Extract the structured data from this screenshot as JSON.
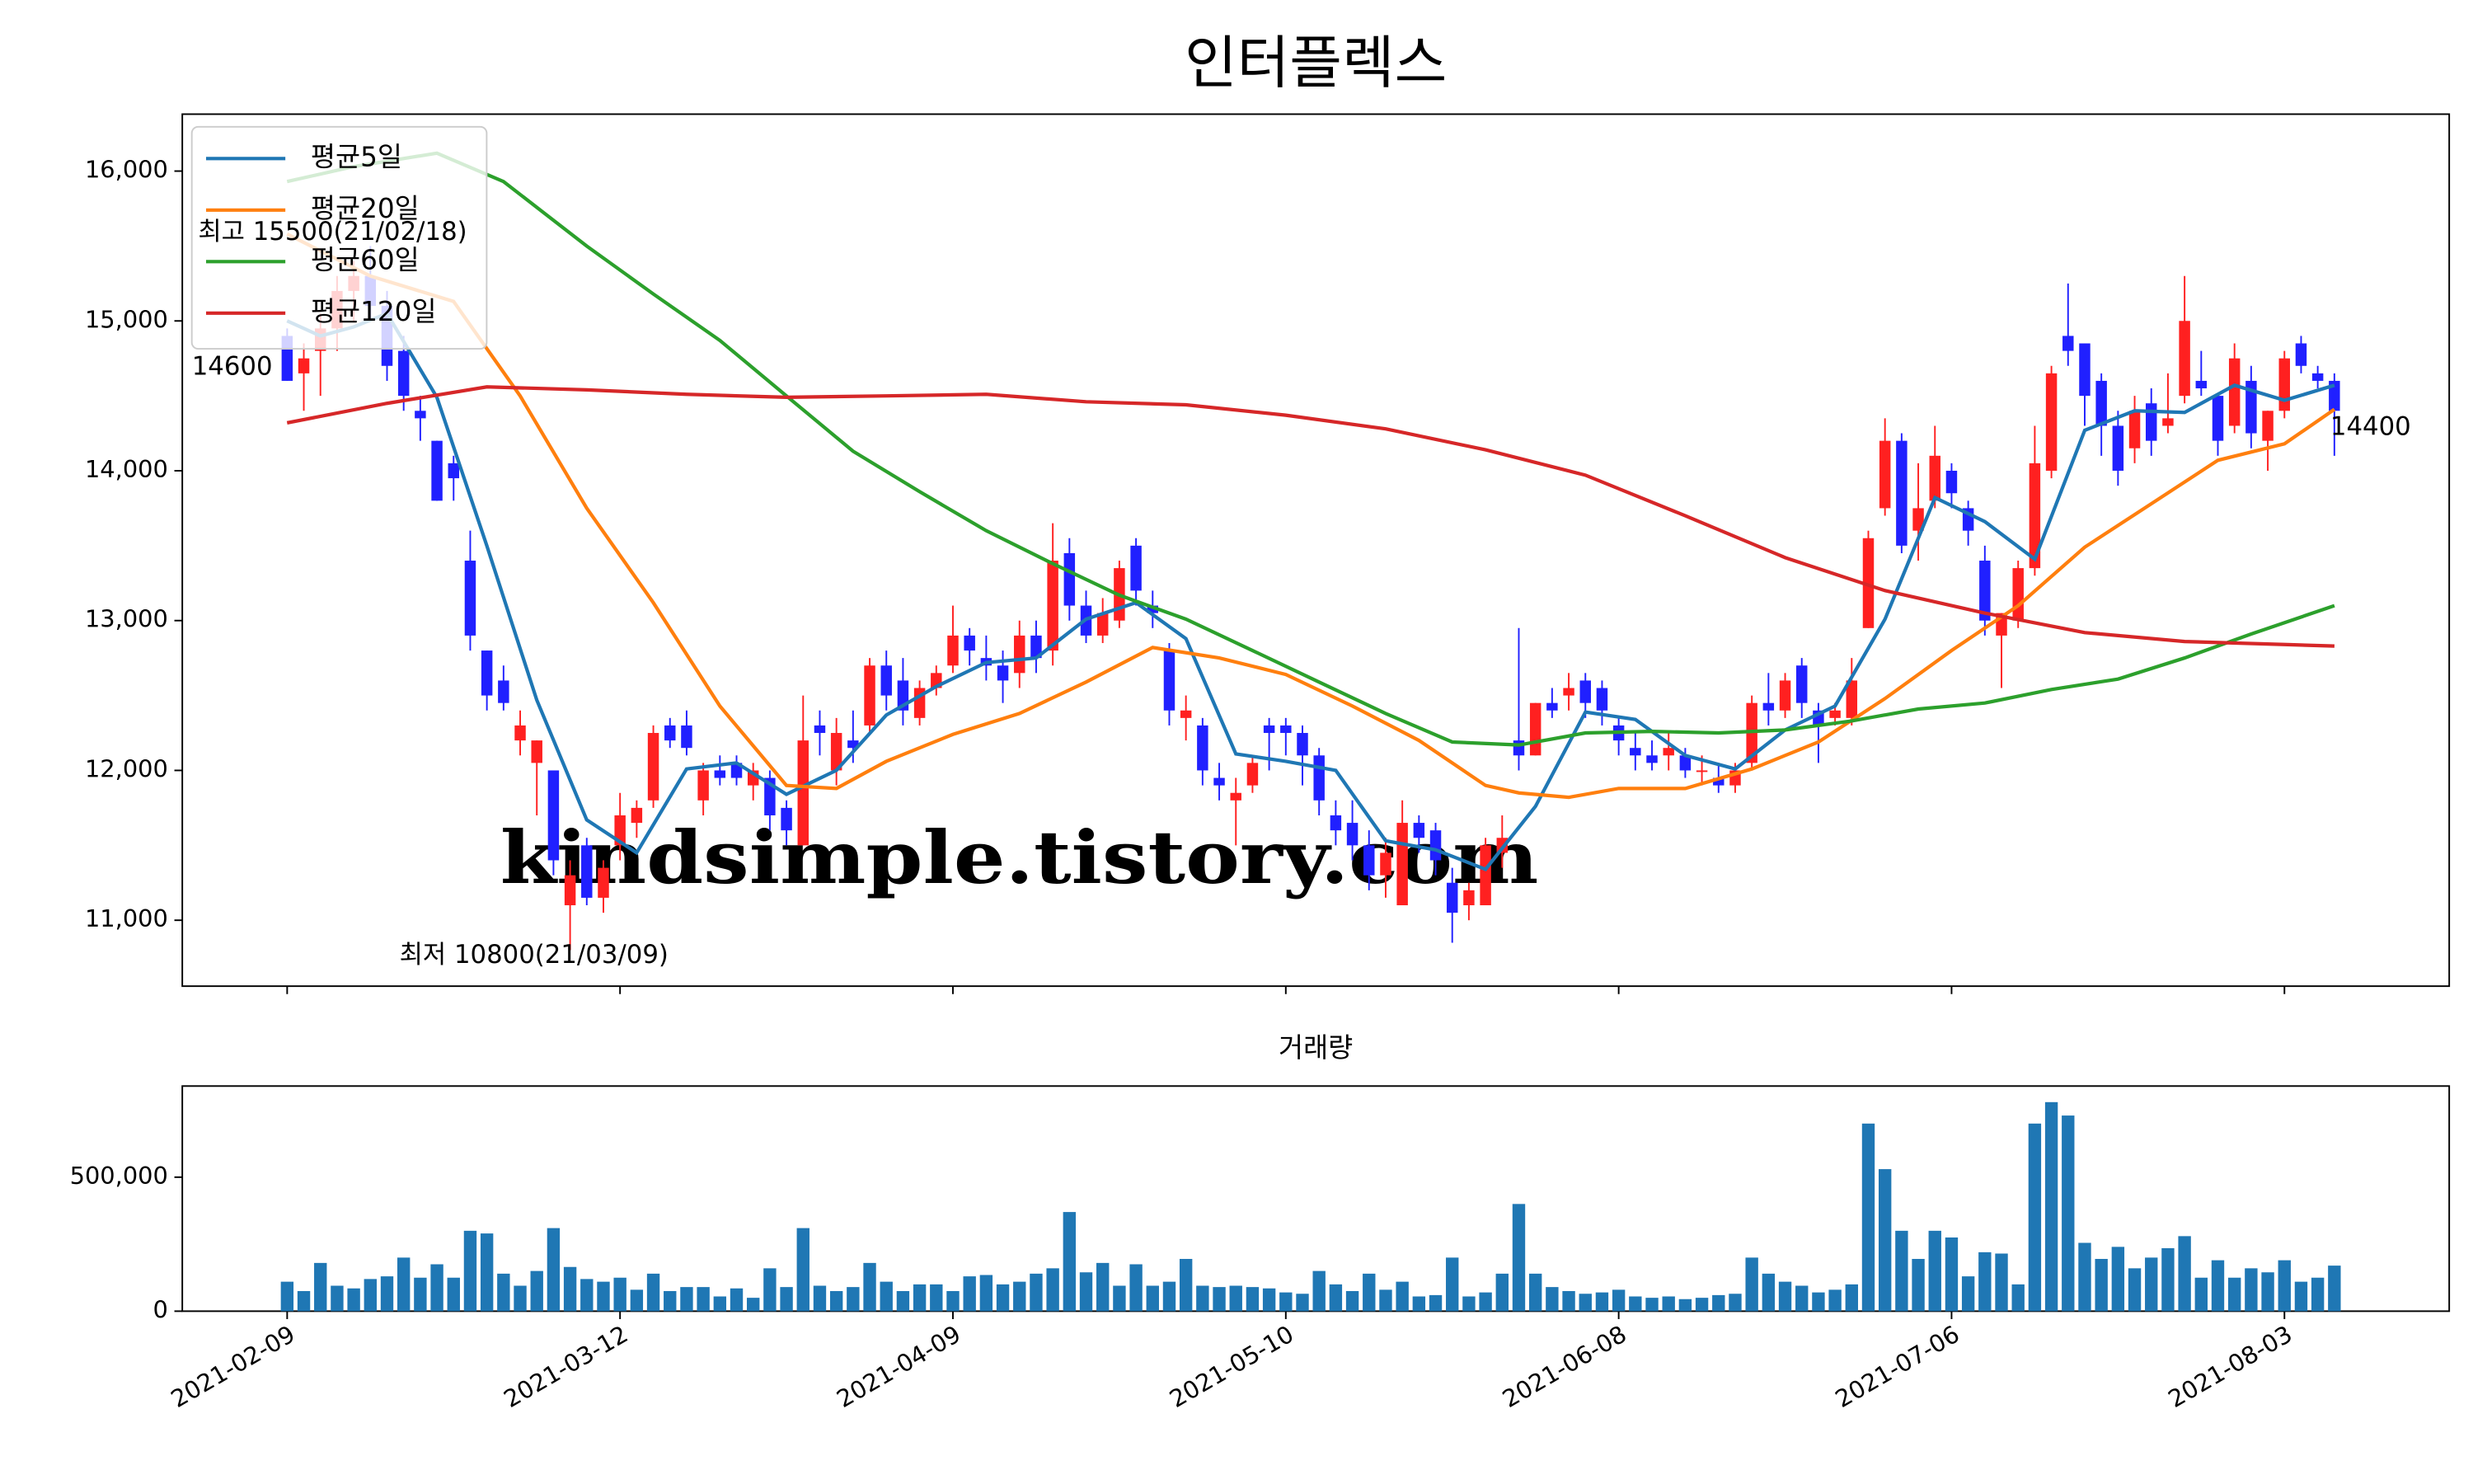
{
  "chart_data": [
    {
      "type": "candlestick",
      "title": "인터플렉스",
      "up_color": "#ff2020",
      "down_color": "#2020ff",
      "watermark": "kindsimple.tistory.com",
      "watermark_color": "#e4a0ee",
      "xlim": [
        -6.3,
        129.9
      ],
      "ylim": [
        10560,
        16380
      ],
      "yticks": [
        {
          "value": 11000,
          "label": "11,000"
        },
        {
          "value": 12000,
          "label": "12,000"
        },
        {
          "value": 13000,
          "label": "13,000"
        },
        {
          "value": 14000,
          "label": "14,000"
        },
        {
          "value": 15000,
          "label": "15,000"
        },
        {
          "value": 16000,
          "label": "16,000"
        }
      ],
      "legend": "upper left",
      "annotations": [
        {
          "text": "최고 15500(21/02/18)",
          "color": "#ff0000"
        },
        {
          "text": "최저 10800(21/03/09)",
          "color": "#0000ff"
        },
        {
          "text": "14600",
          "color": "#000000"
        },
        {
          "text": "14400",
          "color": "#000000"
        }
      ],
      "open": [
        14900,
        14650,
        14800,
        14950,
        15200,
        15300,
        15100,
        14800,
        14400,
        14200,
        14050,
        13400,
        12800,
        12600,
        12200,
        12050,
        12000,
        11100,
        11500,
        11150,
        11500,
        11650,
        11800,
        12300,
        12300,
        11800,
        12000,
        12050,
        11900,
        11950,
        11750,
        11500,
        12300,
        12000,
        12200,
        12300,
        12700,
        12600,
        12350,
        12550,
        12700,
        12900,
        12750,
        12700,
        12650,
        12900,
        12800,
        13450,
        13100,
        12900,
        13000,
        13500,
        13100,
        12800,
        12350,
        12300,
        11950,
        11800,
        11900,
        12300,
        12300,
        12250,
        12100,
        11700,
        11650,
        11500,
        11300,
        11100,
        11650,
        11600,
        11250,
        11100,
        11100,
        11450,
        12200,
        12100,
        12450,
        12500,
        12600,
        12550,
        12300,
        12150,
        12100,
        12100,
        12100,
        12000,
        11950,
        11900,
        12050,
        12450,
        12400,
        12700,
        12400,
        12350,
        12350,
        12950,
        13750,
        14200,
        13600,
        13800,
        14000,
        13750,
        13400,
        12900,
        13000,
        13350,
        14000,
        14900,
        14850,
        14600,
        14300,
        14150,
        14450,
        14300,
        14500,
        14600,
        14500,
        14300,
        14600,
        14200,
        14400,
        14850,
        14650,
        14600
      ],
      "high": [
        14950,
        14850,
        15050,
        15300,
        15400,
        15500,
        15200,
        14900,
        14500,
        14200,
        14100,
        13600,
        12800,
        12700,
        12400,
        12200,
        12000,
        11400,
        11550,
        11400,
        11850,
        11800,
        12300,
        12350,
        12400,
        12050,
        12100,
        12100,
        12050,
        12000,
        11800,
        12500,
        12400,
        12350,
        12400,
        12750,
        12800,
        12750,
        12600,
        12700,
        13100,
        12950,
        12900,
        12800,
        13000,
        13000,
        13650,
        13550,
        13200,
        13150,
        13400,
        13550,
        13200,
        12850,
        12500,
        12350,
        12050,
        11950,
        12100,
        12350,
        12350,
        12300,
        12150,
        11800,
        11800,
        11600,
        11550,
        11800,
        11700,
        11650,
        11350,
        11250,
        11550,
        11700,
        12950,
        12450,
        12550,
        12650,
        12650,
        12600,
        12350,
        12250,
        12200,
        12250,
        12150,
        12100,
        12050,
        12050,
        12500,
        12650,
        12650,
        12750,
        12450,
        12450,
        12750,
        13600,
        14350,
        14250,
        14050,
        14300,
        14050,
        13800,
        13500,
        13050,
        13400,
        14300,
        14700,
        15250,
        14850,
        14650,
        14400,
        14500,
        14550,
        14650,
        15300,
        14800,
        14500,
        14850,
        14700,
        14400,
        14800,
        14900,
        14700,
        14650
      ],
      "low": [
        14600,
        14400,
        14500,
        14800,
        15000,
        15000,
        14600,
        14400,
        14200,
        13800,
        13800,
        12800,
        12400,
        12400,
        12100,
        11700,
        11300,
        10800,
        11100,
        11050,
        11400,
        11550,
        11750,
        12150,
        12100,
        11700,
        11900,
        11900,
        11800,
        11600,
        11500,
        11500,
        12100,
        11900,
        12050,
        12250,
        12400,
        12300,
        12300,
        12500,
        12650,
        12700,
        12600,
        12450,
        12550,
        12650,
        12700,
        13000,
        12850,
        12850,
        12950,
        13100,
        12950,
        12300,
        12200,
        11900,
        11800,
        11500,
        11850,
        12000,
        12100,
        11900,
        11700,
        11500,
        11400,
        11200,
        11150,
        11100,
        11450,
        11300,
        10850,
        11000,
        11100,
        11350,
        12000,
        12100,
        12350,
        12400,
        12350,
        12300,
        12100,
        12000,
        12000,
        12000,
        11950,
        11900,
        11850,
        11850,
        12000,
        12300,
        12350,
        12350,
        12050,
        12300,
        12300,
        12950,
        13700,
        13450,
        13400,
        13750,
        13750,
        13500,
        12900,
        12550,
        12950,
        13300,
        13950,
        14700,
        14300,
        14100,
        13900,
        14050,
        14100,
        14250,
        14450,
        14500,
        14100,
        14250,
        14150,
        14000,
        14350,
        14650,
        14550,
        14100
      ],
      "close": [
        14600,
        14750,
        14950,
        15200,
        15300,
        15100,
        14700,
        14500,
        14350,
        13800,
        13950,
        12900,
        12500,
        12450,
        12300,
        12200,
        11400,
        11300,
        11150,
        11350,
        11700,
        11750,
        12250,
        12200,
        12150,
        12000,
        11950,
        11950,
        12000,
        11700,
        11600,
        12200,
        12250,
        12250,
        12150,
        12700,
        12500,
        12400,
        12550,
        12650,
        12900,
        12800,
        12700,
        12600,
        12900,
        12750,
        13400,
        13100,
        12900,
        13050,
        13350,
        13200,
        13050,
        12400,
        12400,
        12000,
        11900,
        11850,
        12050,
        12250,
        12250,
        12100,
        11800,
        11600,
        11500,
        11300,
        11450,
        11650,
        11550,
        11400,
        11050,
        11200,
        11500,
        11550,
        12100,
        12450,
        12400,
        12550,
        12450,
        12400,
        12200,
        12100,
        12050,
        12150,
        12000,
        12000,
        11900,
        12000,
        12450,
        12400,
        12600,
        12450,
        12300,
        12400,
        12600,
        13550,
        14200,
        13500,
        13750,
        14100,
        13850,
        13600,
        13000,
        13050,
        13350,
        14050,
        14650,
        14800,
        14500,
        14300,
        14000,
        14400,
        14200,
        14350,
        15000,
        14550,
        14200,
        14750,
        14250,
        14400,
        14750,
        14700,
        14600,
        14400
      ],
      "series": [
        {
          "name": "평균5일",
          "color": "#1f77b4",
          "x": [
            0,
            2,
            4,
            6,
            9,
            12,
            15,
            18,
            21,
            24,
            27,
            30,
            33,
            36,
            39,
            42,
            45,
            48,
            51,
            54,
            57,
            60,
            63,
            66,
            69,
            72,
            75,
            78,
            81,
            84,
            87,
            90,
            93,
            96,
            99,
            102,
            105,
            108,
            111,
            114,
            117,
            120,
            123
          ],
          "values": [
            15000,
            14900,
            14960,
            15050,
            14490,
            13500,
            12470,
            11670,
            11450,
            12010,
            12050,
            11840,
            12000,
            12370,
            12560,
            12720,
            12750,
            13010,
            13120,
            12880,
            12110,
            12060,
            12000,
            11530,
            11470,
            11340,
            11760,
            12390,
            12340,
            12100,
            12010,
            12270,
            12430,
            13010,
            13820,
            13660,
            13410,
            14270,
            14400,
            14390,
            14570,
            14470,
            14570
          ]
        },
        {
          "name": "평균20일",
          "color": "#ff7f0e",
          "x": [
            0,
            5,
            10,
            14,
            18,
            22,
            26,
            30,
            33,
            36,
            40,
            44,
            48,
            52,
            56,
            60,
            64,
            68,
            72,
            74,
            77,
            80,
            84,
            88,
            92,
            96,
            100,
            104,
            108,
            112,
            116,
            120,
            123
          ],
          "values": [
            15580,
            15300,
            15130,
            14500,
            13750,
            13120,
            12430,
            11900,
            11880,
            12060,
            12240,
            12380,
            12590,
            12820,
            12750,
            12640,
            12430,
            12200,
            11900,
            11850,
            11820,
            11880,
            11880,
            12010,
            12190,
            12480,
            12800,
            13100,
            13490,
            13780,
            14070,
            14180,
            14410
          ]
        },
        {
          "name": "평균60일",
          "color": "#2ca02c",
          "x": [
            0,
            4,
            9,
            13,
            18,
            22,
            26,
            30,
            34,
            38,
            42,
            46,
            50,
            54,
            58,
            62,
            66,
            70,
            74,
            78,
            82,
            86,
            90,
            94,
            98,
            102,
            106,
            110,
            114,
            118,
            123
          ],
          "values": [
            15930,
            16030,
            16120,
            15930,
            15500,
            15180,
            14870,
            14500,
            14130,
            13860,
            13600,
            13380,
            13170,
            13010,
            12800,
            12590,
            12380,
            12190,
            12170,
            12250,
            12260,
            12250,
            12270,
            12330,
            12410,
            12450,
            12540,
            12610,
            12750,
            12910,
            13100
          ]
        },
        {
          "name": "평균120일",
          "color": "#d62728",
          "x": [
            0,
            6,
            12,
            18,
            24,
            30,
            36,
            42,
            48,
            54,
            60,
            66,
            72,
            78,
            84,
            90,
            96,
            102,
            108,
            114,
            120,
            123
          ],
          "values": [
            14320,
            14450,
            14560,
            14540,
            14510,
            14490,
            14500,
            14510,
            14460,
            14440,
            14370,
            14280,
            14140,
            13970,
            13700,
            13420,
            13200,
            13050,
            12920,
            12860,
            12840,
            12830
          ]
        }
      ]
    },
    {
      "type": "bar",
      "title": "거래량",
      "color": "#1f77b4",
      "xlim": [
        -6.3,
        129.9
      ],
      "ylim": [
        0,
        840000
      ],
      "yticks": [
        0,
        {
          "value": 500000,
          "label": "500,000"
        }
      ],
      "xticks": [
        {
          "value": 0,
          "label": "2021-02-09"
        },
        {
          "value": 20,
          "label": "2021-03-12"
        },
        {
          "value": 40,
          "label": "2021-04-09"
        },
        {
          "value": 60,
          "label": "2021-05-10"
        },
        {
          "value": 80,
          "label": "2021-06-08"
        },
        {
          "value": 100,
          "label": "2021-07-06"
        },
        {
          "value": 120,
          "label": "2021-08-03"
        }
      ],
      "values": [
        110000,
        75000,
        180000,
        95000,
        85000,
        120000,
        130000,
        200000,
        125000,
        175000,
        125000,
        300000,
        290000,
        140000,
        95000,
        150000,
        310000,
        165000,
        120000,
        110000,
        125000,
        80000,
        140000,
        75000,
        90000,
        90000,
        55000,
        85000,
        50000,
        160000,
        90000,
        310000,
        95000,
        75000,
        90000,
        180000,
        110000,
        75000,
        100000,
        100000,
        75000,
        130000,
        135000,
        100000,
        110000,
        140000,
        160000,
        370000,
        145000,
        180000,
        95000,
        175000,
        95000,
        110000,
        195000,
        95000,
        90000,
        95000,
        90000,
        85000,
        70000,
        65000,
        150000,
        100000,
        75000,
        140000,
        80000,
        110000,
        55000,
        60000,
        200000,
        55000,
        70000,
        140000,
        400000,
        140000,
        90000,
        75000,
        65000,
        70000,
        80000,
        55000,
        50000,
        55000,
        45000,
        50000,
        60000,
        65000,
        200000,
        140000,
        110000,
        95000,
        70000,
        80000,
        100000,
        700000,
        530000,
        300000,
        195000,
        300000,
        275000,
        130000,
        220000,
        215000,
        100000,
        700000,
        780000,
        730000,
        255000,
        195000,
        240000,
        160000,
        200000,
        235000,
        280000,
        125000,
        190000,
        125000,
        160000,
        145000,
        190000,
        110000,
        125000,
        170000
      ]
    }
  ]
}
